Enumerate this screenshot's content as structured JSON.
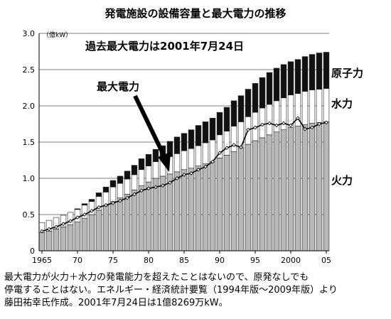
{
  "chart_data": {
    "type": "bar",
    "title": "発電施設の設備容量と最大電力の推移",
    "y_unit_label": "（億kW）",
    "ylim": [
      0,
      3.0
    ],
    "y_ticks": [
      "0",
      "0.5",
      "1.0",
      "1.5",
      "2.0",
      "2.5",
      "3.0"
    ],
    "x_tick_labels": [
      {
        "year": 1965,
        "label": "1965"
      },
      {
        "year": 1970,
        "label": "70"
      },
      {
        "year": 1975,
        "label": "75"
      },
      {
        "year": 1980,
        "label": "80"
      },
      {
        "year": 1985,
        "label": "85"
      },
      {
        "year": 1990,
        "label": "90"
      },
      {
        "year": 1995,
        "label": "95"
      },
      {
        "year": 2000,
        "label": "2000"
      },
      {
        "year": 2005,
        "label": "05"
      }
    ],
    "grid": true,
    "years": [
      1965,
      1966,
      1967,
      1968,
      1969,
      1970,
      1971,
      1972,
      1973,
      1974,
      1975,
      1976,
      1977,
      1978,
      1979,
      1980,
      1981,
      1982,
      1983,
      1984,
      1985,
      1986,
      1987,
      1988,
      1989,
      1990,
      1991,
      1992,
      1993,
      1994,
      1995,
      1996,
      1997,
      1998,
      1999,
      2000,
      2001,
      2002,
      2003,
      2004,
      2005
    ],
    "series": [
      {
        "name": "火力",
        "color": "#b8b8b8",
        "values": [
          0.25,
          0.27,
          0.3,
          0.33,
          0.36,
          0.4,
          0.45,
          0.5,
          0.56,
          0.62,
          0.68,
          0.73,
          0.78,
          0.84,
          0.9,
          0.95,
          1.0,
          1.03,
          1.06,
          1.09,
          1.12,
          1.14,
          1.17,
          1.2,
          1.23,
          1.28,
          1.32,
          1.37,
          1.42,
          1.47,
          1.52,
          1.56,
          1.6,
          1.64,
          1.67,
          1.7,
          1.72,
          1.74,
          1.76,
          1.77,
          1.78
        ]
      },
      {
        "name": "水力",
        "color": "#ffffff",
        "values": [
          0.14,
          0.15,
          0.16,
          0.16,
          0.17,
          0.17,
          0.18,
          0.18,
          0.19,
          0.19,
          0.2,
          0.2,
          0.21,
          0.21,
          0.22,
          0.22,
          0.23,
          0.23,
          0.24,
          0.25,
          0.26,
          0.27,
          0.28,
          0.29,
          0.3,
          0.32,
          0.33,
          0.35,
          0.36,
          0.38,
          0.39,
          0.41,
          0.42,
          0.43,
          0.44,
          0.45,
          0.45,
          0.46,
          0.46,
          0.46,
          0.46
        ]
      },
      {
        "name": "原子力",
        "color": "#111111",
        "values": [
          0.0,
          0.0,
          0.0,
          0.0,
          0.0,
          0.01,
          0.02,
          0.03,
          0.05,
          0.07,
          0.09,
          0.1,
          0.11,
          0.13,
          0.15,
          0.16,
          0.17,
          0.19,
          0.21,
          0.23,
          0.24,
          0.26,
          0.28,
          0.29,
          0.3,
          0.31,
          0.33,
          0.35,
          0.36,
          0.38,
          0.4,
          0.42,
          0.44,
          0.45,
          0.46,
          0.46,
          0.47,
          0.48,
          0.49,
          0.5,
          0.5
        ]
      },
      {
        "name": "最大電力",
        "type": "line",
        "color": "#000000",
        "values": [
          0.27,
          0.3,
          0.33,
          0.37,
          0.41,
          0.46,
          0.5,
          0.55,
          0.6,
          0.63,
          0.66,
          0.69,
          0.73,
          0.78,
          0.83,
          0.86,
          0.88,
          0.9,
          0.94,
          1.0,
          1.05,
          1.07,
          1.12,
          1.16,
          1.23,
          1.35,
          1.42,
          1.46,
          1.43,
          1.67,
          1.7,
          1.74,
          1.76,
          1.73,
          1.76,
          1.73,
          1.83,
          1.68,
          1.7,
          1.75,
          1.77
        ]
      }
    ],
    "annotations": {
      "record": "過去最大電力は2001年7月24日",
      "line_label": "最大電力"
    }
  },
  "caption": {
    "line1": "最大電力が火力＋水力の発電能力を超えたことはないので、原発なしでも",
    "line2": "停電することはない。エネルギー・経済統計要覧（1994年版～2009年版）より",
    "line3": "藤田祐幸氏作成。2001年7月24日は1億8269万kW。"
  }
}
